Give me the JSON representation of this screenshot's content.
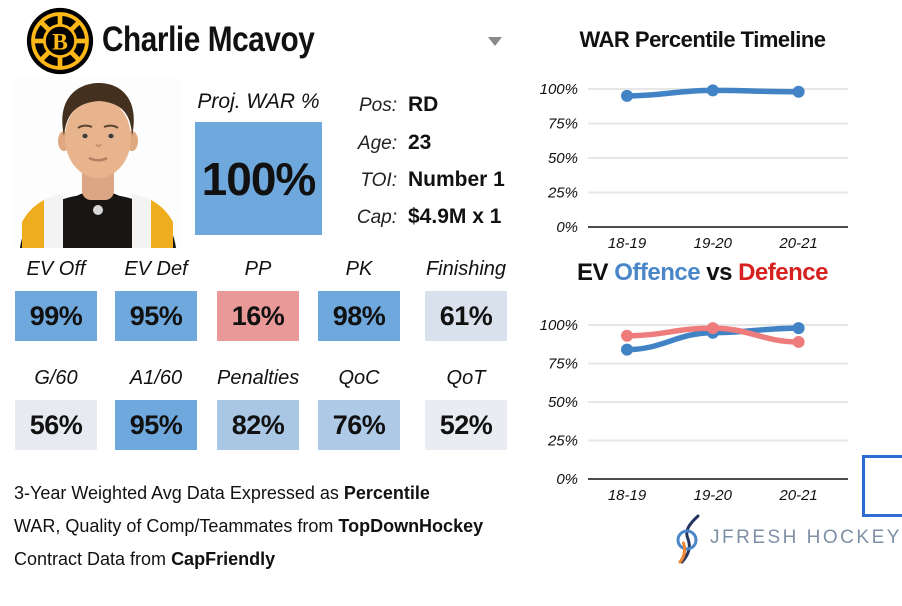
{
  "header": {
    "team_logo": "Boston Bruins",
    "team_logo_letter": "B",
    "player_name": "Charlie Mcavoy"
  },
  "projection": {
    "label": "Proj. WAR %",
    "value": "100%",
    "box_color": "#6fa8dc"
  },
  "bio": [
    {
      "label": "Pos:",
      "value": "RD"
    },
    {
      "label": "Age:",
      "value": "23"
    },
    {
      "label": "TOI:",
      "value": "Number 1"
    },
    {
      "label": "Cap:",
      "value": "$4.9M x 1"
    }
  ],
  "stats": {
    "row1": [
      {
        "label": "EV Off",
        "value": "99%",
        "color": "#6fa8dc"
      },
      {
        "label": "EV Def",
        "value": "95%",
        "color": "#6fa8dc"
      },
      {
        "label": "PP",
        "value": "16%",
        "color": "#ea9999"
      },
      {
        "label": "PK",
        "value": "98%",
        "color": "#6fa8dc"
      },
      {
        "label": "Finishing",
        "value": "61%",
        "color": "#d9e2ec"
      }
    ],
    "row2": [
      {
        "label": "G/60",
        "value": "56%",
        "color": "#e7ebf1"
      },
      {
        "label": "A1/60",
        "value": "95%",
        "color": "#6fa8dc"
      },
      {
        "label": "Penalties",
        "value": "82%",
        "color": "#a9c7e4"
      },
      {
        "label": "QoC",
        "value": "76%",
        "color": "#aecae6"
      },
      {
        "label": "QoT",
        "value": "52%",
        "color": "#e9ecf0"
      }
    ]
  },
  "footnotes": [
    {
      "prefix": "3-Year Weighted Avg Data Expressed as ",
      "bold": "Percentile"
    },
    {
      "prefix": "WAR, Quality of Comp/Teammates from ",
      "bold": "TopDownHockey"
    },
    {
      "prefix": "Contract Data from ",
      "bold": "CapFriendly"
    }
  ],
  "branding": {
    "name": "JFRESH HOCKEY"
  },
  "chart_data": [
    {
      "type": "line",
      "title": "WAR Percentile Timeline",
      "categories": [
        "18-19",
        "19-20",
        "20-21"
      ],
      "series": [
        {
          "name": "WAR Percentile",
          "values": [
            95,
            99,
            98
          ],
          "color": "#4183c4"
        }
      ],
      "ylim": [
        0,
        100
      ],
      "yticks": [
        {
          "value": 0,
          "label": "0%"
        },
        {
          "value": 25,
          "label": "25%"
        },
        {
          "value": 50,
          "label": "50%"
        },
        {
          "value": 75,
          "label": "75%"
        },
        {
          "value": 100,
          "label": "100%"
        }
      ],
      "grid": true,
      "legend": "none"
    },
    {
      "type": "line",
      "title": "EV Offence vs Defence",
      "title_parts": [
        {
          "text": "EV ",
          "color": "#111111"
        },
        {
          "text": "Offence",
          "color": "#4a86c8"
        },
        {
          "text": " vs ",
          "color": "#111111"
        },
        {
          "text": "Defence",
          "color": "#d7211f"
        }
      ],
      "categories": [
        "18-19",
        "19-20",
        "20-21"
      ],
      "series": [
        {
          "name": "EV Offence",
          "values": [
            84,
            95,
            98
          ],
          "color": "#4183c4"
        },
        {
          "name": "EV Defence",
          "values": [
            93,
            98,
            89
          ],
          "color": "#ee7c7c"
        }
      ],
      "ylim": [
        0,
        100
      ],
      "yticks": [
        {
          "value": 0,
          "label": "0%"
        },
        {
          "value": 25,
          "label": "25%"
        },
        {
          "value": 50,
          "label": "50%"
        },
        {
          "value": 75,
          "label": "75%"
        },
        {
          "value": 100,
          "label": "100%"
        }
      ],
      "grid": true,
      "legend": "none"
    }
  ]
}
